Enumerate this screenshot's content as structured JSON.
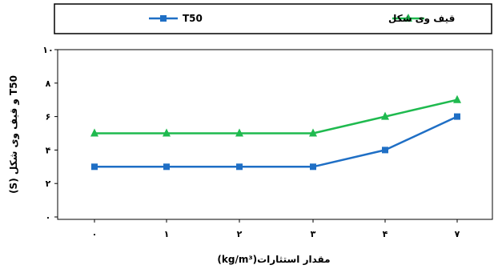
{
  "chart_data": {
    "type": "line",
    "categories": [
      "۰",
      "۱",
      "۲",
      "۳",
      "۴",
      "۷"
    ],
    "yticks": [
      "۰",
      "۲",
      "۴",
      "۶",
      "۸",
      "۱۰"
    ],
    "ylim": [
      0,
      10
    ],
    "xlabel": "مقدار استثارات(kg/m³)",
    "ylabel": "T50 و قیف وی شکل (S)",
    "legend_position": "top",
    "grid": false,
    "series": [
      {
        "name": "T50",
        "values": [
          3,
          3,
          3,
          3,
          4,
          6
        ],
        "color": "#1f6fc5",
        "marker": "square"
      },
      {
        "name": "قیف وی شکل",
        "values": [
          5,
          5,
          5,
          5,
          6,
          7
        ],
        "color": "#1fba4f",
        "marker": "triangle"
      }
    ]
  }
}
